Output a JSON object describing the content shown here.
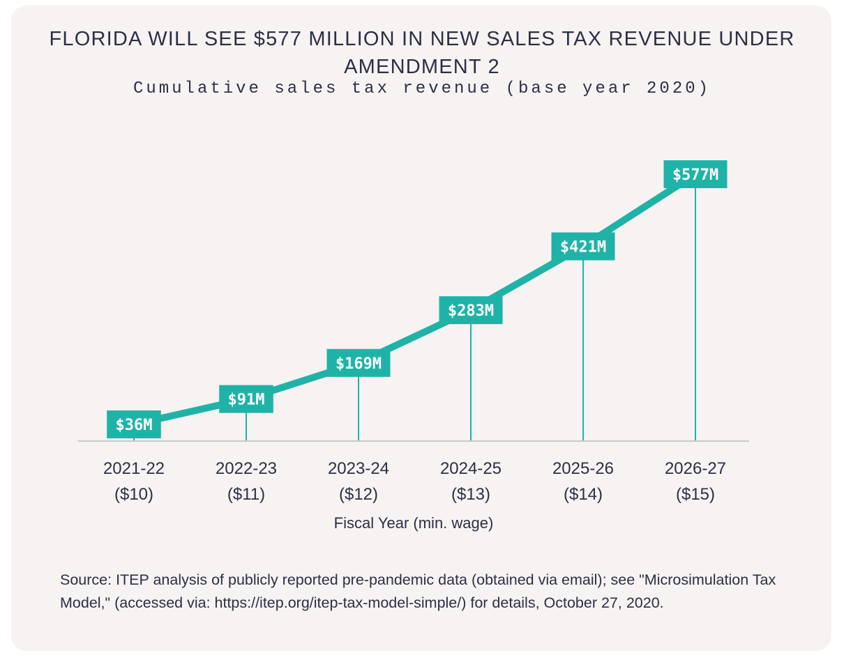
{
  "title": "FLORIDA WILL SEE $577 MILLION IN NEW SALES TAX REVENUE UNDER AMENDMENT 2",
  "subtitle": "Cumulative sales tax revenue (base year 2020)",
  "source_text": "Source: ITEP analysis of publicly reported pre-pandemic data (obtained via email); see \"Microsimulation Tax Model,\" (accessed via: https://itep.org/itep-tax-model-simple/) for details, October 27, 2020.",
  "colors": {
    "accent": "#1fb3a8",
    "text": "#2c2f45",
    "background": "#f7f3f2",
    "axis": "#c8c8c8"
  },
  "chart_data": {
    "type": "line",
    "title": "FLORIDA WILL SEE $577 MILLION IN NEW SALES TAX REVENUE UNDER AMENDMENT 2",
    "subtitle": "Cumulative sales tax revenue (base year 2020)",
    "categories": [
      "2021-22",
      "2022-23",
      "2023-24",
      "2024-25",
      "2025-26",
      "2026-27"
    ],
    "category_sublabels": [
      "($10)",
      "($11)",
      "($12)",
      "($13)",
      "($14)",
      "($15)"
    ],
    "xlabel": "Fiscal Year (min. wage)",
    "ylabel": "",
    "units": "$ millions",
    "series": [
      {
        "values": [
          36,
          91,
          169,
          283,
          421,
          577
        ],
        "labels": [
          "$36M",
          "$91M",
          "$169M",
          "$283M",
          "$421M",
          "$577M"
        ]
      }
    ],
    "ylim": [
      0,
      577
    ],
    "grid": false,
    "legend": "none"
  }
}
